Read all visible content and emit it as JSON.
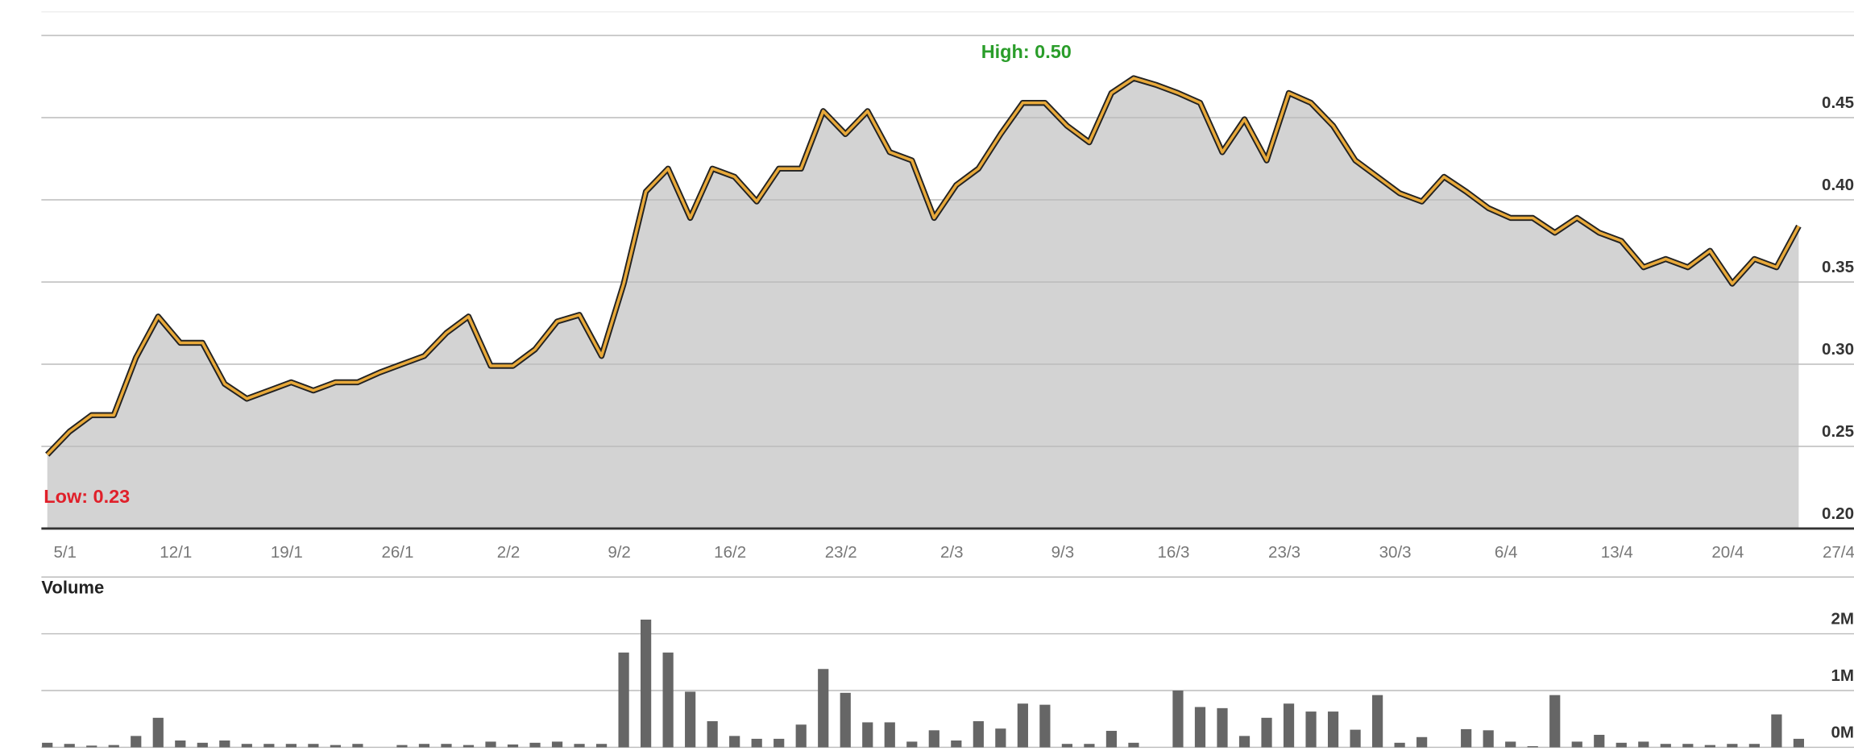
{
  "chart_data": [
    {
      "type": "line",
      "annotations": {
        "high": "High: 0.50",
        "low": "Low: 0.23"
      },
      "color": "#e8a93a",
      "fill": "#d3d3d3",
      "values": [
        0.245,
        0.259,
        0.269,
        0.269,
        0.304,
        0.329,
        0.313,
        0.313,
        0.288,
        0.279,
        0.284,
        0.289,
        0.284,
        0.289,
        0.289,
        0.295,
        0.3,
        0.305,
        0.319,
        0.329,
        0.299,
        0.299,
        0.309,
        0.326,
        0.33,
        0.305,
        0.349,
        0.405,
        0.419,
        0.389,
        0.419,
        0.414,
        0.399,
        0.419,
        0.419,
        0.454,
        0.44,
        0.454,
        0.429,
        0.424,
        0.389,
        0.409,
        0.419,
        0.44,
        0.459,
        0.459,
        0.445,
        0.435,
        0.465,
        0.474,
        0.47,
        0.465,
        0.459,
        0.429,
        0.449,
        0.424,
        0.465,
        0.459,
        0.445,
        0.424,
        0.414,
        0.404,
        0.399,
        0.414,
        0.405,
        0.395,
        0.389,
        0.389,
        0.38,
        0.389,
        0.38,
        0.375,
        0.359,
        0.364,
        0.359,
        0.369,
        0.349,
        0.364,
        0.359,
        0.384
      ],
      "xlim": [
        0,
        80
      ],
      "xticks": [
        {
          "value": 0,
          "label": "5/1"
        },
        {
          "value": 5,
          "label": "12/1"
        },
        {
          "value": 10,
          "label": "19/1"
        },
        {
          "value": 15,
          "label": "26/1"
        },
        {
          "value": 20,
          "label": "2/2"
        },
        {
          "value": 25,
          "label": "9/2"
        },
        {
          "value": 30,
          "label": "16/2"
        },
        {
          "value": 35,
          "label": "23/2"
        },
        {
          "value": 40,
          "label": "2/3"
        },
        {
          "value": 45,
          "label": "9/3"
        },
        {
          "value": 50,
          "label": "16/3"
        },
        {
          "value": 55,
          "label": "23/3"
        },
        {
          "value": 60,
          "label": "30/3"
        },
        {
          "value": 65,
          "label": "6/4"
        },
        {
          "value": 70,
          "label": "13/4"
        },
        {
          "value": 75,
          "label": "20/4"
        },
        {
          "value": 80,
          "label": "27/4"
        }
      ],
      "ylim": [
        0.2,
        0.5
      ],
      "yticks": [
        {
          "value": 0.2,
          "label": "0.20"
        },
        0.25,
        {
          "value": 0.3,
          "label": "0.30"
        },
        0.35,
        {
          "value": 0.4,
          "label": "0.40"
        },
        0.45
      ],
      "grid": true
    },
    {
      "type": "bar",
      "title": "Volume",
      "color": "#666666",
      "values": [
        0.08,
        0.06,
        0.03,
        0.04,
        0.2,
        0.52,
        0.12,
        0.08,
        0.12,
        0.06,
        0.06,
        0.06,
        0.06,
        0.04,
        0.06,
        0,
        0.04,
        0.06,
        0.06,
        0.04,
        0.1,
        0.05,
        0.08,
        0.1,
        0.06,
        0.06,
        1.67,
        2.25,
        1.67,
        0.98,
        0.46,
        0.2,
        0.15,
        0.15,
        0.4,
        1.38,
        0.96,
        0.44,
        0.44,
        0.1,
        0.3,
        0.12,
        0.46,
        0.33,
        0.77,
        0.75,
        0.06,
        0.06,
        0.29,
        0.08,
        0,
        1.0,
        0.71,
        0.69,
        0.2,
        0.52,
        0.77,
        0.63,
        0.63,
        0.31,
        0.92,
        0.08,
        0.18,
        0,
        0.32,
        0.3,
        0.1,
        0.02,
        0.92,
        0.1,
        0.22,
        0.08,
        0.1,
        0.06,
        0.06,
        0.04,
        0.06,
        0.06,
        0.58,
        0.15
      ],
      "ylim": [
        0,
        2
      ],
      "yticks": [
        {
          "value": 0,
          "label": "0M"
        },
        {
          "value": 1,
          "label": "1M"
        },
        {
          "value": 2,
          "label": "2M"
        }
      ],
      "grid": true
    }
  ]
}
